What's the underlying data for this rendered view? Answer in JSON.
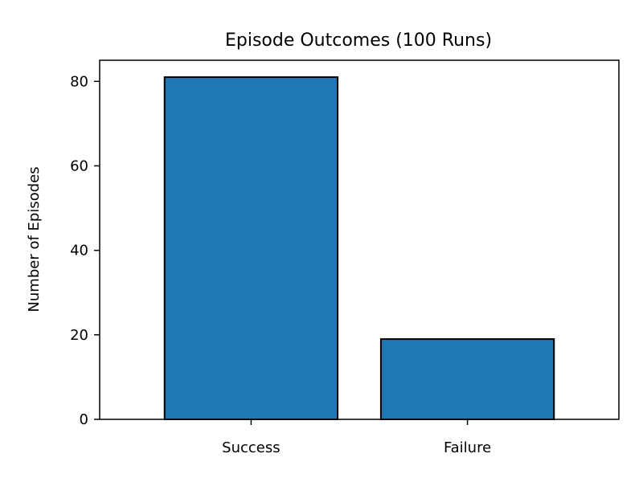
{
  "chart_data": {
    "type": "bar",
    "title": "Episode Outcomes (100 Runs)",
    "xlabel": "",
    "ylabel": "Number of Episodes",
    "categories": [
      "Success",
      "Failure"
    ],
    "values": [
      81,
      19
    ],
    "ylim": [
      0,
      85
    ],
    "yticks": [
      0,
      20,
      40,
      60,
      80
    ],
    "bar_color": "#1f77b4",
    "bar_edge_color": "#000000",
    "grid": false,
    "legend": "none"
  }
}
